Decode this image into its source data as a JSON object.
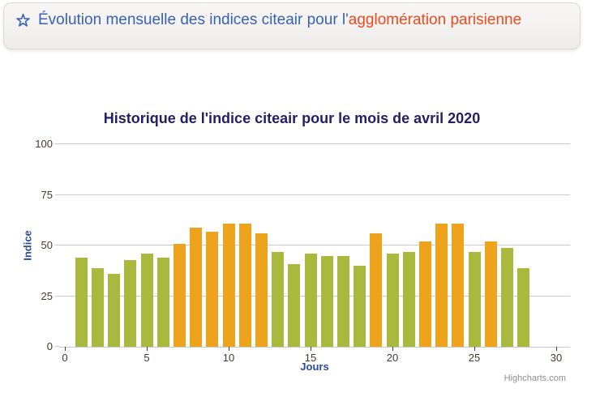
{
  "header": {
    "icon": "star-outline-icon",
    "text_primary": "Évolution mensuelle des indices citeair pour l'",
    "text_highlight": "agglomération parisienne",
    "colors": {
      "primary": "#3A62AE",
      "highlight": "#EE4A1E"
    }
  },
  "chart_data": {
    "type": "bar",
    "title": "Historique de l'indice citeair pour le mois de avril 2020",
    "xlabel": "Jours",
    "ylabel": "Indice",
    "x": [
      1,
      2,
      3,
      4,
      5,
      6,
      7,
      8,
      9,
      10,
      11,
      12,
      13,
      14,
      15,
      16,
      17,
      18,
      19,
      20,
      21,
      22,
      23,
      24,
      25,
      26,
      27,
      28
    ],
    "values": [
      44,
      39,
      36,
      43,
      46,
      44,
      51,
      59,
      57,
      61,
      61,
      56,
      47,
      41,
      46,
      45,
      45,
      40,
      56,
      46,
      47,
      52,
      61,
      61,
      47,
      52,
      49,
      39
    ],
    "bar_colors": [
      "green",
      "green",
      "green",
      "green",
      "green",
      "green",
      "orange",
      "orange",
      "orange",
      "orange",
      "orange",
      "orange",
      "green",
      "green",
      "green",
      "green",
      "green",
      "green",
      "orange",
      "green",
      "green",
      "orange",
      "orange",
      "orange",
      "green",
      "orange",
      "green",
      "green"
    ],
    "palette": {
      "green": "#A9B93D",
      "orange": "#EDA41C"
    },
    "xlim": [
      0,
      31
    ],
    "ylim": [
      0,
      100
    ],
    "xticks": [
      0,
      5,
      10,
      15,
      20,
      25,
      30
    ],
    "yticks": [
      0,
      25,
      50,
      75,
      100
    ],
    "grid": "horizontal",
    "legend": "none",
    "credit": "Highcharts.com",
    "style": {
      "title_color": "#232069",
      "axis_title_color": "#2A4C9E",
      "tick_label_color": "#453A2D",
      "gridline_color": "#CBCBCB",
      "axisline_color": "#C3CBD6",
      "credit_color": "#8F8F8F"
    }
  }
}
